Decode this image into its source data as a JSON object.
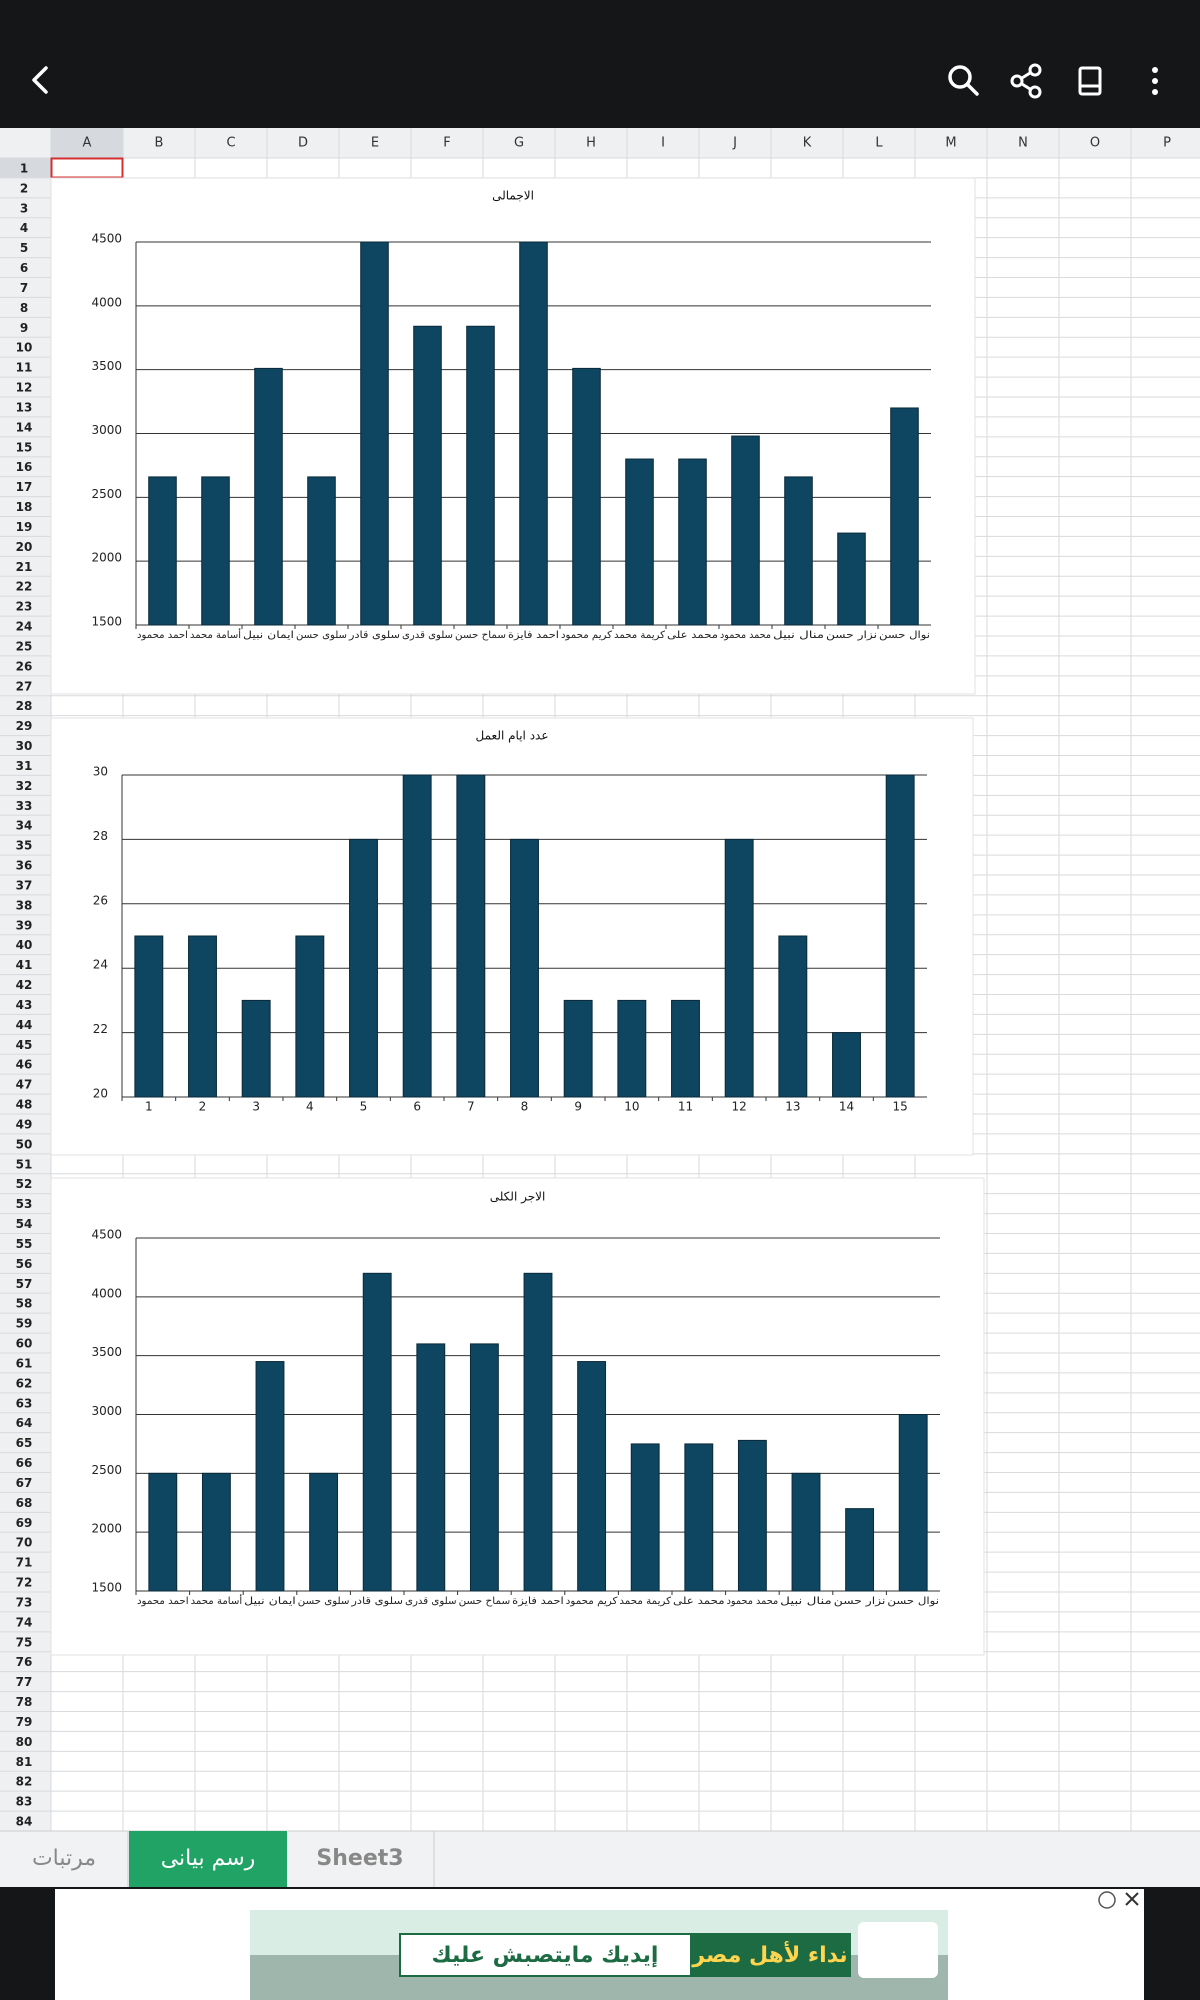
{
  "columns": [
    "A",
    "B",
    "C",
    "D",
    "E",
    "F",
    "G",
    "H",
    "I",
    "J",
    "K",
    "L",
    "M",
    "N",
    "O",
    "P"
  ],
  "rows": [
    1,
    2,
    3,
    4,
    5,
    6,
    7,
    8,
    9,
    10,
    11,
    12,
    13,
    14,
    15,
    16,
    17,
    18,
    19,
    20,
    21,
    22,
    23,
    24,
    25,
    26,
    27,
    28,
    29,
    30,
    31,
    32,
    33,
    34,
    35,
    36,
    37,
    38,
    39,
    40,
    41,
    42,
    43,
    44,
    45,
    46,
    47,
    48,
    49,
    50,
    51,
    52,
    53,
    54,
    55,
    56,
    57,
    58,
    59,
    60,
    61,
    62,
    63,
    64,
    65,
    66,
    67,
    68,
    69,
    70,
    71,
    72,
    73,
    74,
    75,
    76,
    77,
    78,
    79,
    80,
    81,
    82,
    83,
    84
  ],
  "chart_data": [
    {
      "type": "bar",
      "title": "الاجمالى",
      "categories": [
        "احمد محمود",
        "أسامة محمد",
        "ايمان نبيل",
        "سلوى حسن",
        "سلوى قادر",
        "سلوى قدرى",
        "سماح حسن",
        "احمد فايزة",
        "كريم محمود",
        "كريمة محمد",
        "محمد على",
        "محمد محمود",
        "منال نبيل",
        "نزار حسن",
        "نوال حسن"
      ],
      "values": [
        2660,
        2660,
        3510,
        2660,
        4500,
        3840,
        3840,
        4500,
        3510,
        2800,
        2800,
        2980,
        2660,
        2220,
        3200
      ],
      "color": "#0e4560",
      "ylim": [
        1500,
        4500
      ],
      "yticks": [
        1500,
        2000,
        2500,
        3000,
        3500,
        4000,
        4500
      ],
      "grid": true
    },
    {
      "type": "bar",
      "title": "عدد ايام العمل",
      "categories": [
        "1",
        "2",
        "3",
        "4",
        "5",
        "6",
        "7",
        "8",
        "9",
        "10",
        "11",
        "12",
        "13",
        "14",
        "15"
      ],
      "values": [
        25,
        25,
        23,
        25,
        28,
        30,
        30,
        28,
        23,
        23,
        23,
        28,
        25,
        22,
        30
      ],
      "color": "#0e4560",
      "ylim": [
        20,
        30
      ],
      "yticks": [
        20,
        22,
        24,
        26,
        28,
        30
      ],
      "grid": true
    },
    {
      "type": "bar",
      "title": "الاجر الكلى",
      "categories": [
        "احمد محمود",
        "أسامة محمد",
        "ايمان نبيل",
        "سلوى حسن",
        "سلوى قادر",
        "سلوى قدرى",
        "سماح حسن",
        "احمد فايزة",
        "كريم محمود",
        "كريمة محمد",
        "محمد على",
        "محمد محمود",
        "منال نبيل",
        "نزار حسن",
        "نوال حسن"
      ],
      "values": [
        2500,
        2500,
        3450,
        2500,
        4200,
        3600,
        3600,
        4200,
        3450,
        2750,
        2750,
        2780,
        2500,
        2200,
        3000
      ],
      "color": "#0e4560",
      "ylim": [
        1500,
        4500
      ],
      "yticks": [
        1500,
        2000,
        2500,
        3000,
        3500,
        4000,
        4500
      ],
      "grid": true
    }
  ],
  "tabs": [
    "مرتبات",
    "رسم بيانى",
    "Sheet3"
  ],
  "ad": {
    "headline": "نداء لأهل مصر",
    "slogan": "إيديك مايتصبش عليك"
  }
}
